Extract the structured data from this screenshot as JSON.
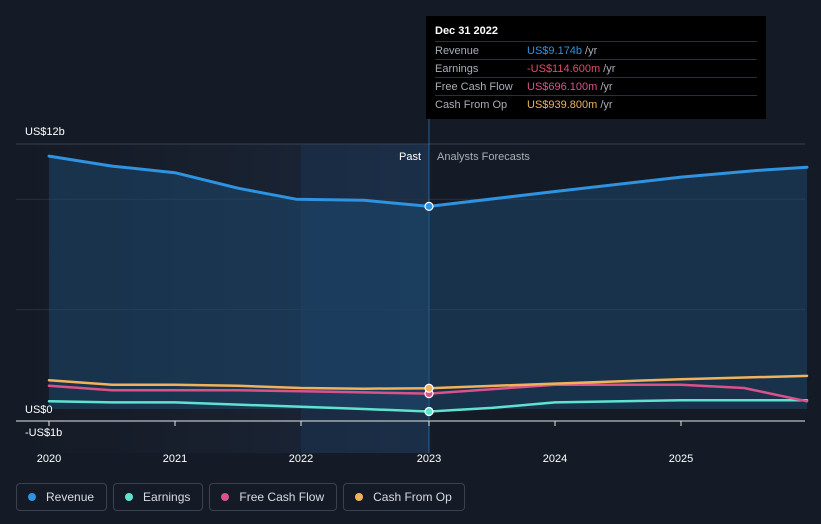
{
  "chart_data": {
    "type": "line",
    "x_ticks": [
      "2020",
      "2021",
      "2022",
      "2023",
      "2024",
      "2025"
    ],
    "y_labels": {
      "top": "US$12b",
      "zero": "US$0",
      "bottom": "-US$1b"
    },
    "ylim": [
      -1,
      12
    ],
    "xlim": [
      2020,
      2026
    ],
    "region_labels": {
      "past": "Past",
      "forecast": "Analysts Forecasts"
    },
    "divider_x": 2023,
    "series": [
      {
        "name": "Revenue",
        "color": "#2e93e0",
        "fill": true,
        "points": [
          [
            2020,
            11.45
          ],
          [
            2020.5,
            11.0
          ],
          [
            2021,
            10.7
          ],
          [
            2021.5,
            10.0
          ],
          [
            2021.96,
            9.5
          ],
          [
            2022.5,
            9.45
          ],
          [
            2023,
            9.174
          ],
          [
            2024,
            9.85
          ],
          [
            2025,
            10.5
          ],
          [
            2025.6,
            10.8
          ],
          [
            2026,
            10.95
          ]
        ]
      },
      {
        "name": "Earnings",
        "color": "#5fe3d0",
        "fill": false,
        "points": [
          [
            2020,
            0.35
          ],
          [
            2020.5,
            0.3
          ],
          [
            2021,
            0.3
          ],
          [
            2021.5,
            0.2
          ],
          [
            2022,
            0.1
          ],
          [
            2022.5,
            0.0
          ],
          [
            2023,
            -0.1146
          ],
          [
            2023.5,
            0.05
          ],
          [
            2024,
            0.3
          ],
          [
            2025,
            0.4
          ],
          [
            2026,
            0.4
          ]
        ]
      },
      {
        "name": "Free Cash Flow",
        "color": "#d9528a",
        "fill": false,
        "points": [
          [
            2020,
            1.05
          ],
          [
            2020.5,
            0.85
          ],
          [
            2021,
            0.85
          ],
          [
            2021.5,
            0.85
          ],
          [
            2022,
            0.8
          ],
          [
            2022.5,
            0.75
          ],
          [
            2023,
            0.6961
          ],
          [
            2024,
            1.1
          ],
          [
            2025,
            1.1
          ],
          [
            2025.5,
            0.95
          ],
          [
            2026,
            0.35
          ]
        ]
      },
      {
        "name": "Cash From Op",
        "color": "#f0b35c",
        "fill": false,
        "points": [
          [
            2020,
            1.3
          ],
          [
            2020.5,
            1.1
          ],
          [
            2021,
            1.1
          ],
          [
            2021.5,
            1.05
          ],
          [
            2022,
            0.95
          ],
          [
            2022.5,
            0.92
          ],
          [
            2023,
            0.9398
          ],
          [
            2024,
            1.15
          ],
          [
            2025,
            1.35
          ],
          [
            2026,
            1.5
          ]
        ]
      }
    ]
  },
  "tooltip": {
    "date": "Dec 31 2022",
    "rows": [
      {
        "name": "Revenue",
        "value": "US$9.174b",
        "unit": "/yr",
        "color": "#2e93e0"
      },
      {
        "name": "Earnings",
        "value": "-US$114.600m",
        "unit": "/yr",
        "color": "#e64a6b"
      },
      {
        "name": "Free Cash Flow",
        "value": "US$696.100m",
        "unit": "/yr",
        "color": "#d9528a"
      },
      {
        "name": "Cash From Op",
        "value": "US$939.800m",
        "unit": "/yr",
        "color": "#f0b35c"
      }
    ]
  },
  "legend": [
    {
      "label": "Revenue",
      "color": "#2e93e0"
    },
    {
      "label": "Earnings",
      "color": "#5fe3d0"
    },
    {
      "label": "Free Cash Flow",
      "color": "#d9528a"
    },
    {
      "label": "Cash From Op",
      "color": "#f0b35c"
    }
  ]
}
